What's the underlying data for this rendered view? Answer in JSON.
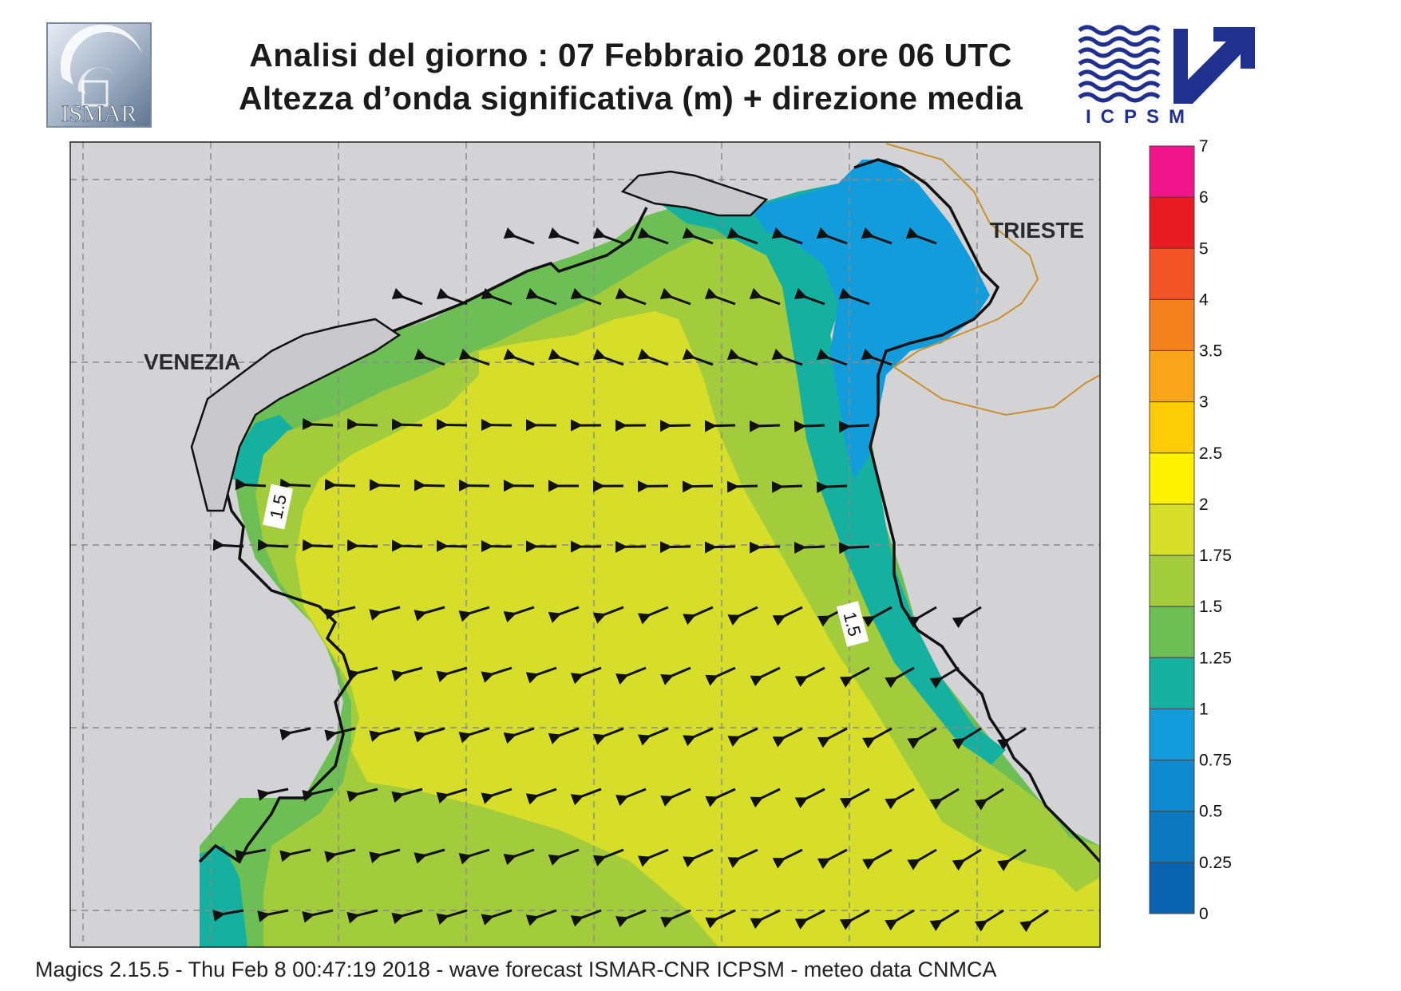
{
  "header": {
    "title_line1": "Analisi del giorno :  07  Febbraio 2018   ore 06 UTC",
    "title_line2": "Altezza d’onda significativa (m) + direzione media"
  },
  "logos": {
    "left": {
      "text": "ISMAR",
      "icon": "ismar-logo-icon"
    },
    "right": {
      "text": "ICPSM",
      "icon": "icpsm-logo-icon"
    }
  },
  "map": {
    "places": [
      {
        "id": "venezia",
        "label": "VENEZIA"
      },
      {
        "id": "trieste",
        "label": "TRIESTE"
      }
    ],
    "contour_labels": [
      "1.5",
      "1.5"
    ],
    "sea_field_colors": {
      "1.75-2": "#d6de29",
      "1.5-1.75": "#a3cc3c",
      "1.25-1.5": "#6cbe55",
      "1-1.25": "#16b0a0",
      "0.75-1": "#139cdb",
      "land": "#d3d3d6"
    },
    "arrows": {
      "meaning": "direzione media",
      "rows": [
        {
          "count": 8,
          "lon_from": 0.56,
          "lon_to": 0.93,
          "lat": 0.1,
          "dir": "sw"
        },
        {
          "count": 13,
          "lon_from": 0.45,
          "lon_to": 0.93,
          "lat": 0.2,
          "dir": "sw"
        },
        {
          "count": 14,
          "lon_from": 0.37,
          "lon_to": 0.89,
          "lat": 0.28,
          "dir": "sw"
        }
      ]
    }
  },
  "legend": {
    "unit": "m",
    "levels": [
      "7",
      "6",
      "5",
      "4",
      "3.5",
      "3",
      "2.5",
      "2",
      "1.75",
      "1.5",
      "1.25",
      "1",
      "0.75",
      "0.5",
      "0.25",
      "0"
    ],
    "colors": [
      "#f0168a",
      "#e81b23",
      "#f25427",
      "#f5821f",
      "#f9a51a",
      "#fdcd07",
      "#fff200",
      "#d6de29",
      "#a3cc3c",
      "#6cbe55",
      "#16b0a0",
      "#139cdb",
      "#0f8ad0",
      "#0c78bf",
      "#0a64b0"
    ]
  },
  "footer": {
    "text": "Magics 2.15.5 - Thu Feb  8 00:47:19 2018 - wave forecast  ISMAR-CNR  ICPSM - meteo data   CNMCA"
  }
}
